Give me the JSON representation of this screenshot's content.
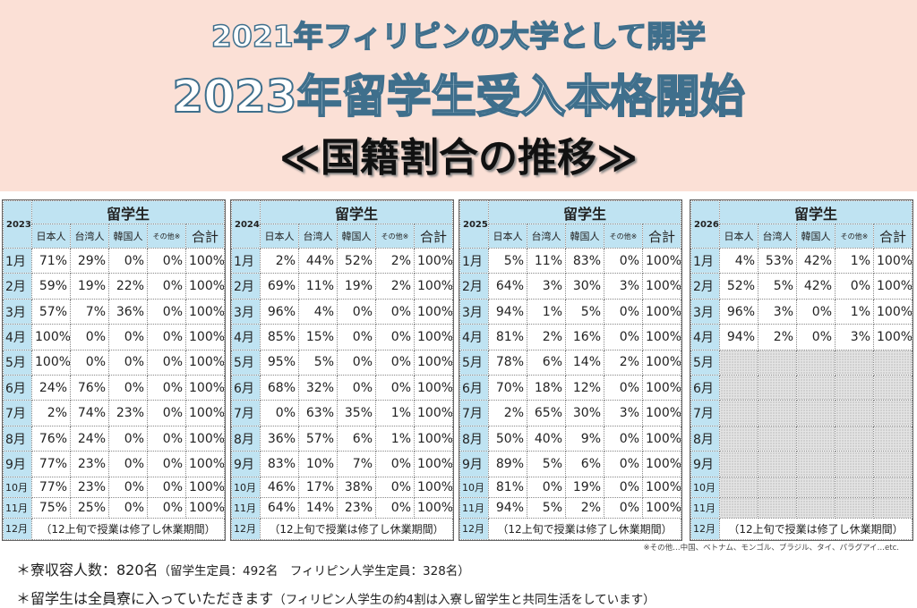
{
  "header": {
    "title_line1": "2021年フィリピンの大学として開学",
    "title_line2": "2023年留学生受入本格開始",
    "title_line3": "≪国籍割合の推移≫"
  },
  "table_labels": {
    "group": "留学生",
    "columns": [
      "日本人",
      "台湾人",
      "韓国人",
      "その他※",
      "合計"
    ],
    "months": [
      "1月",
      "2月",
      "3月",
      "4月",
      "5月",
      "6月",
      "7月",
      "8月",
      "9月",
      "10月",
      "11月",
      "12月"
    ],
    "december_note": "（12上旬で授業は修了し休業期間）"
  },
  "tables": [
    {
      "year": "2023",
      "rows": [
        [
          "71%",
          "29%",
          "0%",
          "0%",
          "100%"
        ],
        [
          "59%",
          "19%",
          "22%",
          "0%",
          "100%"
        ],
        [
          "57%",
          "7%",
          "36%",
          "0%",
          "100%"
        ],
        [
          "100%",
          "0%",
          "0%",
          "0%",
          "100%"
        ],
        [
          "100%",
          "0%",
          "0%",
          "0%",
          "100%"
        ],
        [
          "24%",
          "76%",
          "0%",
          "0%",
          "100%"
        ],
        [
          "2%",
          "74%",
          "23%",
          "0%",
          "100%"
        ],
        [
          "76%",
          "24%",
          "0%",
          "0%",
          "100%"
        ],
        [
          "77%",
          "23%",
          "0%",
          "0%",
          "100%"
        ],
        [
          "77%",
          "23%",
          "0%",
          "0%",
          "100%"
        ],
        [
          "75%",
          "25%",
          "0%",
          "0%",
          "100%"
        ]
      ]
    },
    {
      "year": "2024",
      "rows": [
        [
          "2%",
          "44%",
          "52%",
          "2%",
          "100%"
        ],
        [
          "69%",
          "11%",
          "19%",
          "2%",
          "100%"
        ],
        [
          "96%",
          "4%",
          "0%",
          "0%",
          "100%"
        ],
        [
          "85%",
          "15%",
          "0%",
          "0%",
          "100%"
        ],
        [
          "95%",
          "5%",
          "0%",
          "0%",
          "100%"
        ],
        [
          "68%",
          "32%",
          "0%",
          "0%",
          "100%"
        ],
        [
          "0%",
          "63%",
          "35%",
          "1%",
          "100%"
        ],
        [
          "36%",
          "57%",
          "6%",
          "1%",
          "100%"
        ],
        [
          "83%",
          "10%",
          "7%",
          "0%",
          "100%"
        ],
        [
          "46%",
          "17%",
          "38%",
          "0%",
          "100%"
        ],
        [
          "64%",
          "14%",
          "23%",
          "0%",
          "100%"
        ]
      ]
    },
    {
      "year": "2025",
      "rows": [
        [
          "5%",
          "11%",
          "83%",
          "0%",
          "100%"
        ],
        [
          "64%",
          "3%",
          "30%",
          "3%",
          "100%"
        ],
        [
          "94%",
          "1%",
          "5%",
          "0%",
          "100%"
        ],
        [
          "81%",
          "2%",
          "16%",
          "0%",
          "100%"
        ],
        [
          "78%",
          "6%",
          "14%",
          "2%",
          "100%"
        ],
        [
          "70%",
          "18%",
          "12%",
          "0%",
          "100%"
        ],
        [
          "2%",
          "65%",
          "30%",
          "3%",
          "100%"
        ],
        [
          "50%",
          "40%",
          "9%",
          "0%",
          "100%"
        ],
        [
          "89%",
          "5%",
          "6%",
          "0%",
          "100%"
        ],
        [
          "81%",
          "0%",
          "19%",
          "0%",
          "100%"
        ],
        [
          "94%",
          "5%",
          "2%",
          "0%",
          "100%"
        ]
      ]
    },
    {
      "year": "2026",
      "rows": [
        [
          "4%",
          "53%",
          "42%",
          "1%",
          "100%"
        ],
        [
          "52%",
          "5%",
          "42%",
          "0%",
          "100%"
        ],
        [
          "96%",
          "3%",
          "0%",
          "1%",
          "100%"
        ],
        [
          "94%",
          "2%",
          "0%",
          "3%",
          "100%"
        ],
        null,
        null,
        null,
        null,
        null,
        null,
        null
      ]
    }
  ],
  "footnote": "※その他…中国、ベトナム、モンゴル、ブラジル、タイ、パラグアイ…etc.",
  "notes": {
    "line1_main": "＊寮収容人数：820名",
    "line1_sub": "（留学生定員：492名　フィリピン人学生定員：328名）",
    "line2_main": "＊留学生は全員寮に入っていただきます",
    "line2_sub": "（フィリピン人学生の約4割は入寮し留学生と共同生活をしています）"
  }
}
